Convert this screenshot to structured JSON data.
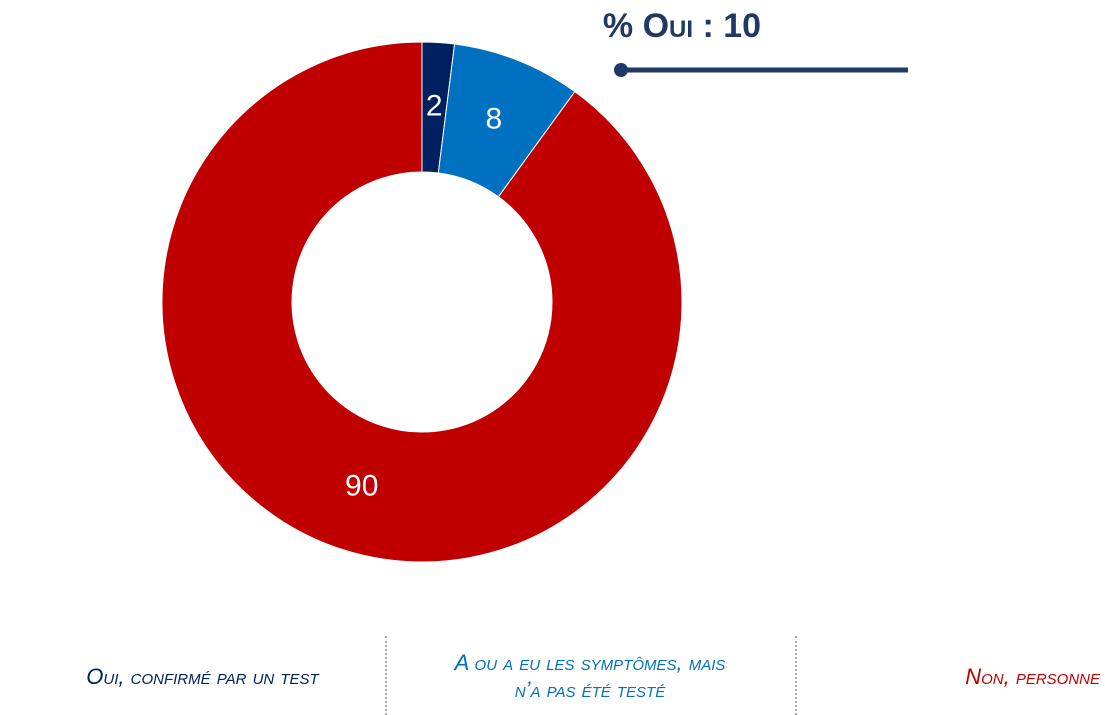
{
  "chart_data": {
    "type": "donut",
    "categories": [
      "Oui, confirmé par un test",
      "A ou a eu les symptômes, mais n’a pas été testé",
      "Non, personne"
    ],
    "values": [
      2,
      8,
      90
    ],
    "colors": [
      "#002060",
      "#0070c0",
      "#c00000"
    ],
    "annotation": "% Oui : 10"
  }
}
